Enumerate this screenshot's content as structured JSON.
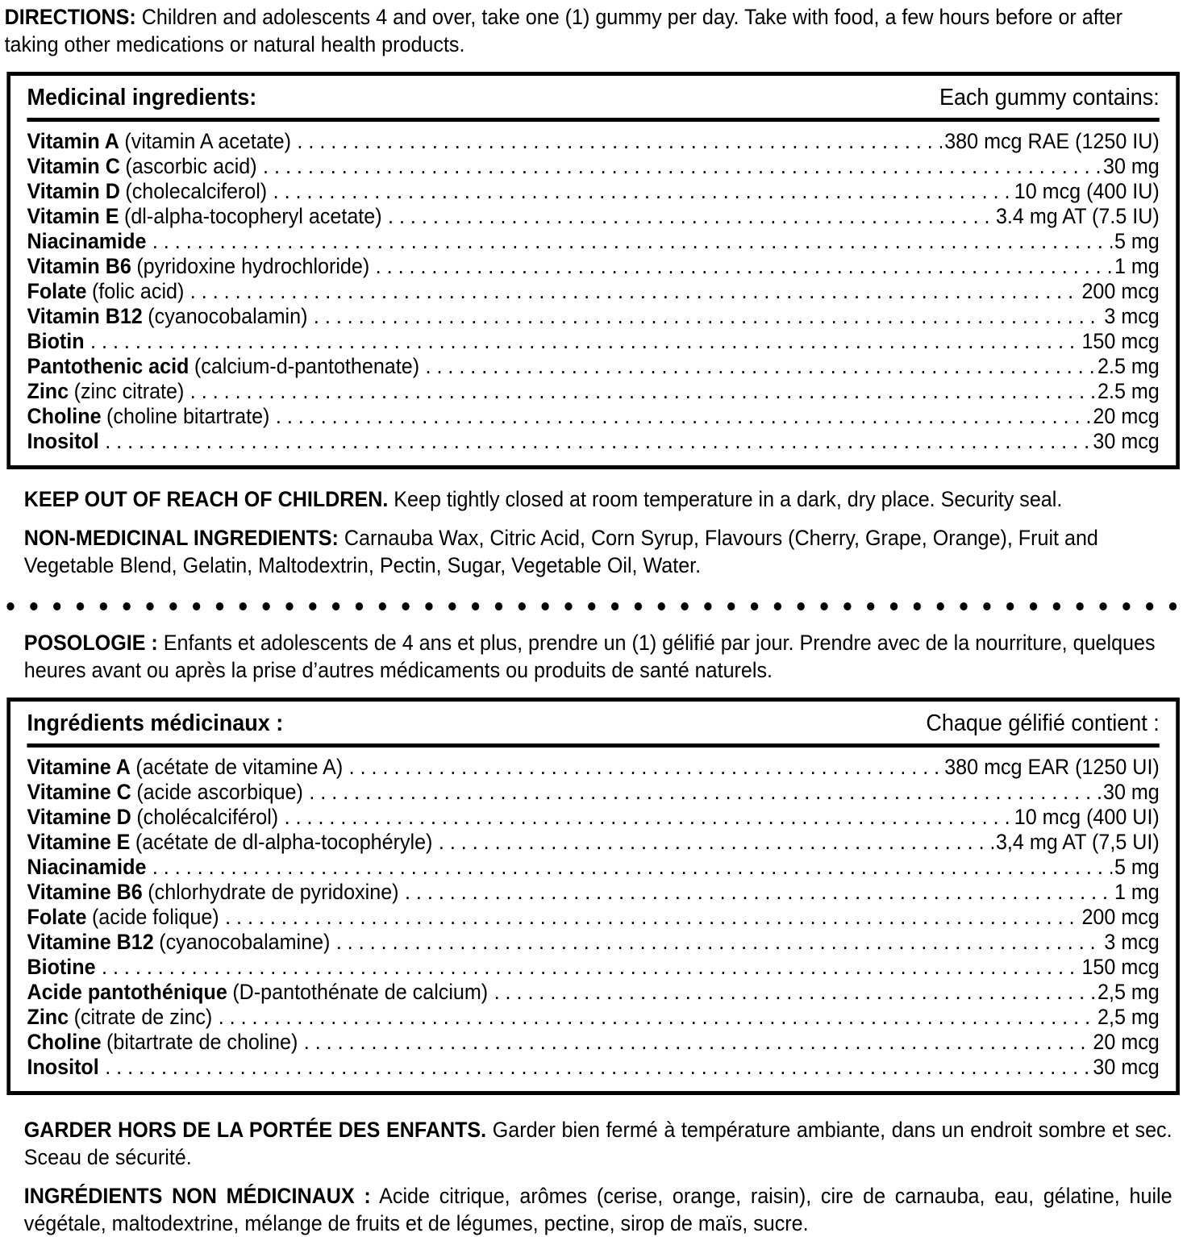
{
  "colors": {
    "background": "#ffffff",
    "text": "#000000"
  },
  "directions": {
    "label": "DIRECTIONS:",
    "text": "Children and adolescents 4 and over, take one (1) gummy per day. Take with food, a few hours before or after taking other medications or natural health products."
  },
  "medicinal_en": {
    "title": "Medicinal ingredients:",
    "contains": "Each gummy contains:",
    "rows": [
      {
        "name": "Vitamin A",
        "detail": "(vitamin A acetate)",
        "value": "380 mcg RAE (1250 IU)"
      },
      {
        "name": "Vitamin C",
        "detail": "(ascorbic acid)",
        "value": "30 mg"
      },
      {
        "name": "Vitamin D",
        "detail": "(cholecalciferol)",
        "value": "10 mcg (400 IU)"
      },
      {
        "name": "Vitamin E",
        "detail": "(dl-alpha-tocopheryl acetate)",
        "value": "3.4 mg AT (7.5 IU)"
      },
      {
        "name": "Niacinamide",
        "detail": "",
        "value": "5 mg"
      },
      {
        "name": "Vitamin B6",
        "detail": "(pyridoxine hydrochloride)",
        "value": "1 mg"
      },
      {
        "name": "Folate",
        "detail": "(folic acid)",
        "value": "200 mcg"
      },
      {
        "name": "Vitamin B12",
        "detail": "(cyanocobalamin)",
        "value": "3 mcg"
      },
      {
        "name": "Biotin",
        "detail": "",
        "value": "150 mcg"
      },
      {
        "name": "Pantothenic acid",
        "detail": "(calcium-d-pantothenate)",
        "value": "2.5 mg"
      },
      {
        "name": "Zinc",
        "detail": "(zinc citrate)",
        "value": "2.5 mg"
      },
      {
        "name": "Choline",
        "detail": "(choline bitartrate)",
        "value": "20 mcg"
      },
      {
        "name": "Inositol",
        "detail": "",
        "value": "30 mcg"
      }
    ]
  },
  "keep_en": {
    "label": "KEEP OUT OF REACH OF CHILDREN.",
    "text": "Keep tightly closed at room temperature in a dark, dry place. Security seal."
  },
  "nonmed_en": {
    "label": "NON-MEDICINAL INGREDIENTS:",
    "text": "Carnauba Wax, Citric Acid, Corn Syrup, Flavours (Cherry, Grape, Orange), Fruit and Vegetable Blend, Gelatin, Maltodextrin, Pectin, Sugar, Vegetable Oil, Water."
  },
  "posologie": {
    "label": "POSOLOGIE :",
    "text": "Enfants et adolescents de 4 ans et plus, prendre un (1) gélifié par jour. Prendre avec de la nourriture, quelques heures avant ou après la prise d’autres médicaments ou produits de santé naturels."
  },
  "medicinal_fr": {
    "title": "Ingrédients médicinaux :",
    "contains": "Chaque gélifié contient :",
    "rows": [
      {
        "name": "Vitamine A",
        "detail": "(acétate de vitamine A)",
        "value": "380 mcg EAR (1250 UI)"
      },
      {
        "name": "Vitamine C",
        "detail": "(acide ascorbique)",
        "value": "30 mg"
      },
      {
        "name": "Vitamine D",
        "detail": "(cholécalciférol)",
        "value": "10 mcg (400 UI)"
      },
      {
        "name": "Vitamine E",
        "detail": "(acétate de dl-alpha-tocophéryle)",
        "value": "3,4 mg AT (7,5 UI)"
      },
      {
        "name": "Niacinamide",
        "detail": "",
        "value": "5 mg"
      },
      {
        "name": "Vitamine B6",
        "detail": "(chlorhydrate de pyridoxine)",
        "value": "1 mg"
      },
      {
        "name": "Folate",
        "detail": "(acide folique)",
        "value": "200 mcg"
      },
      {
        "name": "Vitamine B12",
        "detail": "(cyanocobalamine)",
        "value": "3 mcg"
      },
      {
        "name": "Biotine",
        "detail": "",
        "value": "150 mcg"
      },
      {
        "name": "Acide pantothénique",
        "detail": "(D-pantothénate de calcium)",
        "value": "2,5 mg"
      },
      {
        "name": "Zinc",
        "detail": "(citrate de zinc)",
        "value": "2,5 mg"
      },
      {
        "name": "Choline",
        "detail": "(bitartrate de choline)",
        "value": "20 mcg"
      },
      {
        "name": "Inositol",
        "detail": "",
        "value": "30 mcg"
      }
    ]
  },
  "garder_fr": {
    "label": "GARDER HORS DE LA PORTÉE DES ENFANTS.",
    "text": "Garder bien fermé à température ambiante, dans un endroit sombre et sec. Sceau de sécurité."
  },
  "nonmed_fr": {
    "label": "INGRÉDIENTS NON MÉDICINAUX :",
    "text": "Acide citrique, arômes (cerise, orange, raisin), cire de carnauba, eau, gélatine, huile végétale, maltodextrine, mélange de fruits et de légumes, pectine, sirop de maïs, sucre."
  }
}
